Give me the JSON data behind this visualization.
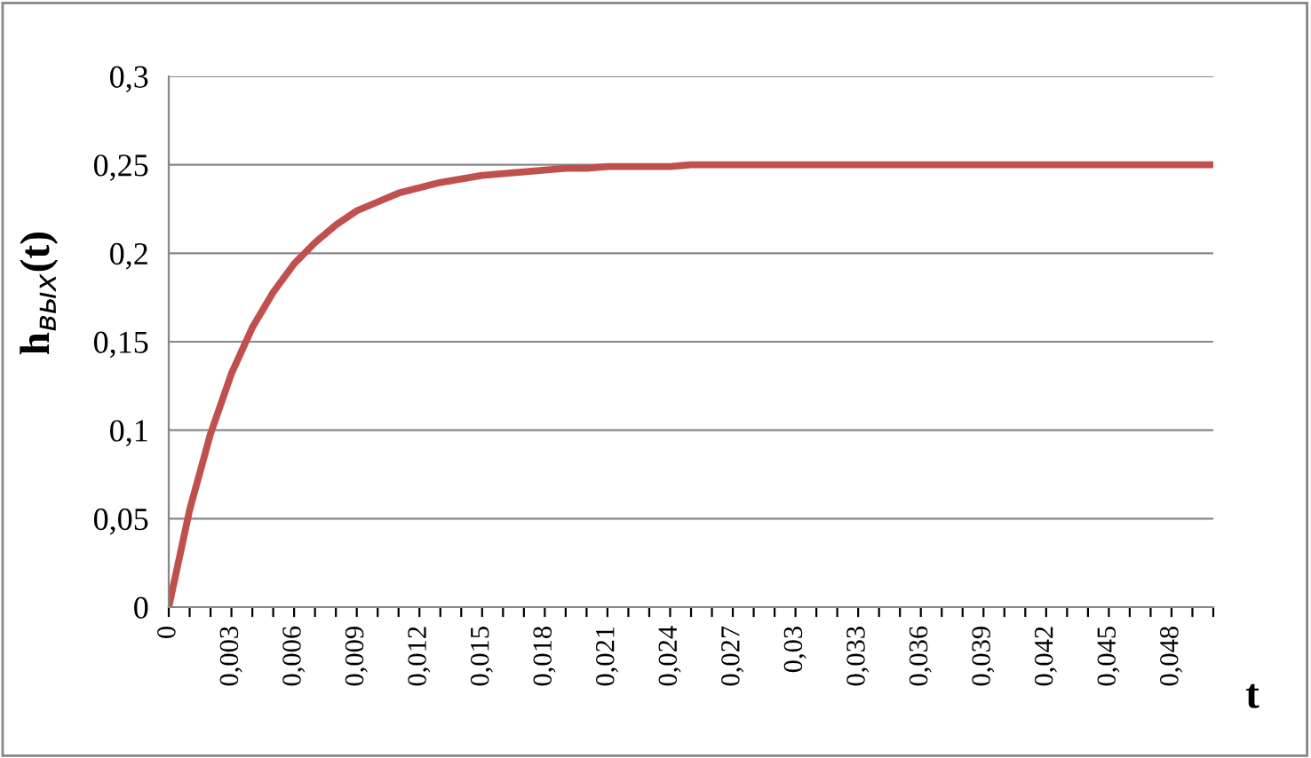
{
  "chart_data": {
    "type": "line",
    "ylabel": "h$_{вых}$(t)",
    "xlabel": "t",
    "categories": [
      "0",
      null,
      null,
      "0,003",
      null,
      null,
      "0,006",
      null,
      null,
      "0,009",
      null,
      null,
      "0,012",
      null,
      null,
      "0,015",
      null,
      null,
      "0,018",
      null,
      null,
      "0,021",
      null,
      null,
      "0,024",
      null,
      null,
      "0,027",
      null,
      null,
      "0,03",
      null,
      null,
      "0,033",
      null,
      null,
      "0,036",
      null,
      null,
      "0,039",
      null,
      null,
      "0,042",
      null,
      null,
      "0,045",
      null,
      null,
      "0,048",
      null,
      null
    ],
    "series": [
      {
        "color": "#c0504d",
        "values": [
          0,
          0.055,
          0.098,
          0.132,
          0.158,
          0.178,
          0.194,
          0.206,
          0.216,
          0.224,
          0.229,
          0.234,
          0.237,
          0.24,
          0.242,
          0.244,
          0.245,
          0.246,
          0.247,
          0.248,
          0.248,
          0.249,
          0.249,
          0.249,
          0.249,
          0.25,
          0.25,
          0.25,
          0.25,
          0.25,
          0.25,
          0.25,
          0.25,
          0.25,
          0.25,
          0.25,
          0.25,
          0.25,
          0.25,
          0.25,
          0.25,
          0.25,
          0.25,
          0.25,
          0.25,
          0.25,
          0.25,
          0.25,
          0.25,
          0.25,
          0.25
        ]
      }
    ],
    "ylim": [
      0,
      0.3
    ],
    "yticks": [
      0,
      {
        "value": 0.05,
        "label": "0,05"
      },
      {
        "value": 0.1,
        "label": "0,1"
      },
      {
        "value": 0.15,
        "label": "0,15"
      },
      {
        "value": 0.2,
        "label": "0,2"
      },
      {
        "value": 0.25,
        "label": "0,25"
      },
      {
        "value": 0.3,
        "label": "0,3"
      }
    ],
    "grid": "y",
    "legend": false,
    "marker": "none",
    "line_style": "solid"
  }
}
